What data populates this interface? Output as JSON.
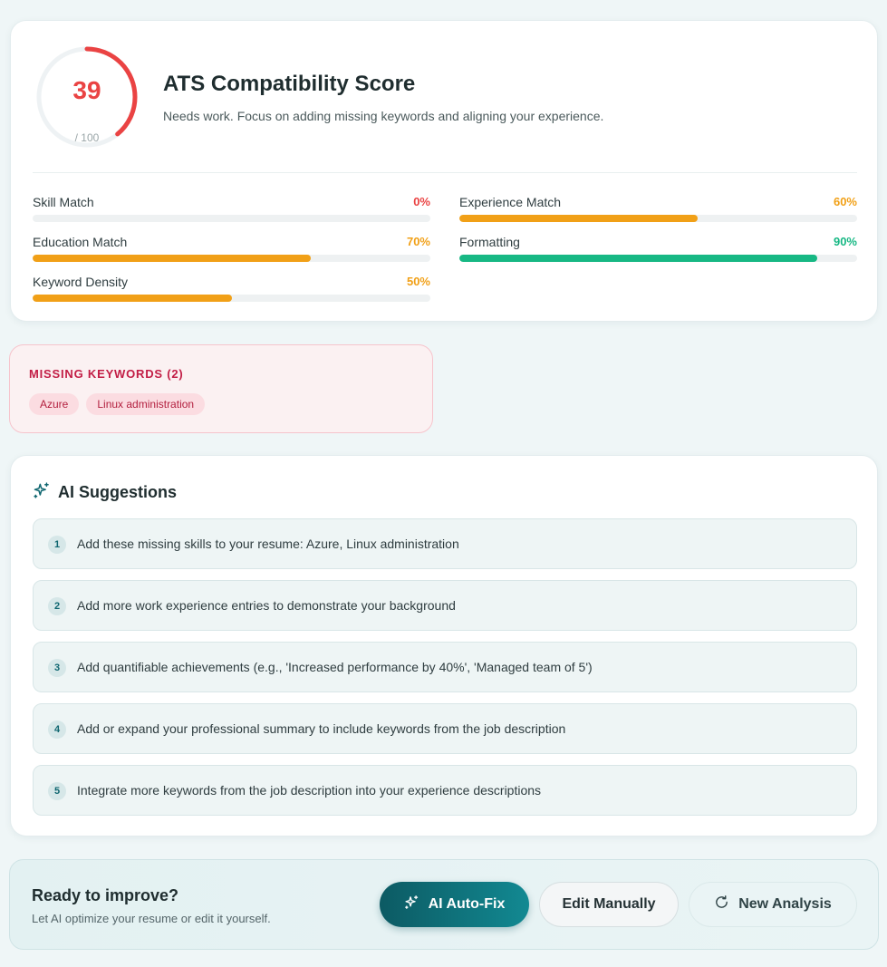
{
  "score": {
    "value": "39",
    "max_label": "/ 100",
    "progress": 0.39,
    "title": "ATS Compatibility Score",
    "subtitle": "Needs work. Focus on adding missing keywords and aligning your experience.",
    "color": "#ea4343"
  },
  "metrics": [
    {
      "label": "Skill Match",
      "pct": "0%",
      "value": 0,
      "color": "#ea4343"
    },
    {
      "label": "Experience Match",
      "pct": "60%",
      "value": 60,
      "color": "#f1a017"
    },
    {
      "label": "Education Match",
      "pct": "70%",
      "value": 70,
      "color": "#f1a017"
    },
    {
      "label": "Formatting",
      "pct": "90%",
      "value": 90,
      "color": "#17b884"
    },
    {
      "label": "Keyword Density",
      "pct": "50%",
      "value": 50,
      "color": "#f1a017"
    }
  ],
  "missing": {
    "title": "MISSING KEYWORDS (2)",
    "keywords": [
      "Azure",
      "Linux administration"
    ]
  },
  "suggestions": {
    "title": "AI Suggestions",
    "icon": "sparkles-icon",
    "items": [
      {
        "num": "1",
        "text": "Add these missing skills to your resume: Azure, Linux administration"
      },
      {
        "num": "2",
        "text": "Add more work experience entries to demonstrate your background"
      },
      {
        "num": "3",
        "text": "Add quantifiable achievements (e.g., 'Increased performance by 40%', 'Managed team of 5')"
      },
      {
        "num": "4",
        "text": "Add or expand your professional summary to include keywords from the job description"
      },
      {
        "num": "5",
        "text": "Integrate more keywords from the job description into your experience descriptions"
      }
    ]
  },
  "cta": {
    "title": "Ready to improve?",
    "subtitle": "Let AI optimize your resume or edit it yourself.",
    "auto_fix_label": "AI Auto-Fix",
    "edit_label": "Edit Manually",
    "new_label": "New Analysis"
  }
}
